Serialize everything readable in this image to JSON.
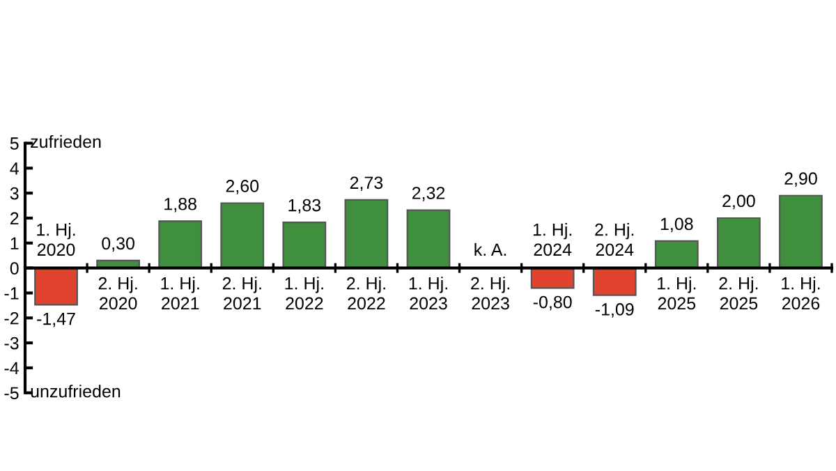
{
  "chart_data": {
    "type": "bar",
    "categories": [
      "1. Hj.\n2020",
      "2. Hj.\n2020",
      "1. Hj.\n2021",
      "2. Hj.\n2021",
      "1. Hj.\n2022",
      "2. Hj.\n2022",
      "1. Hj.\n2023",
      "2. Hj.\n2023",
      "1. Hj.\n2024",
      "2. Hj.\n2024",
      "1. Hj.\n2025",
      "2. Hj.\n2025",
      "1. Hj.\n2026"
    ],
    "values": [
      -1.47,
      0.3,
      1.88,
      2.6,
      1.83,
      2.73,
      2.32,
      null,
      -0.8,
      -1.09,
      1.08,
      2.0,
      2.9
    ],
    "value_labels": [
      "-1,47",
      "0,30",
      "1,88",
      "2,60",
      "1,83",
      "2,73",
      "2,32",
      null,
      "-0,80",
      "-1,09",
      "1,08",
      "2,00",
      "2,90"
    ],
    "colors": [
      "#e0432e",
      "#3f8f3f",
      "#3f8f3f",
      "#3f8f3f",
      "#3f8f3f",
      "#3f8f3f",
      "#3f8f3f",
      "#3f8f3f",
      "#e0432e",
      "#e0432e",
      "#3f8f3f",
      "#3f8f3f",
      "#3f8f3f"
    ],
    "ylim": [
      -5,
      5
    ],
    "yticks": [
      -5,
      -4,
      -3,
      -2,
      -1,
      0,
      1,
      2,
      3,
      4,
      5
    ],
    "annotations": [
      "zufrieden",
      "unzufrieden",
      "k. A."
    ],
    "grid": false
  }
}
